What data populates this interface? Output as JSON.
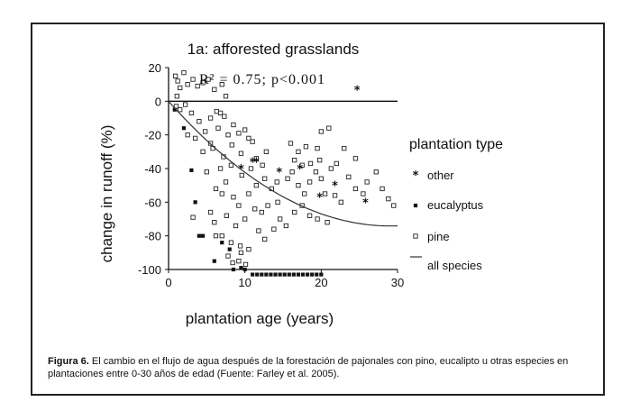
{
  "chart_data": {
    "type": "scatter",
    "title": "1a: afforested grasslands",
    "annotation": "R² = 0.75; p<0.001",
    "xlabel": "plantation age (years)",
    "ylabel": "change in runoff (%)",
    "xlim": [
      0,
      30
    ],
    "ylim": [
      -100,
      20
    ],
    "xticks": [
      0,
      10,
      20,
      30
    ],
    "yticks": [
      20,
      0,
      -20,
      -40,
      -60,
      -80,
      -100
    ],
    "legend": {
      "title": "plantation type",
      "placement": "right",
      "entries": [
        {
          "label": "other",
          "marker": "asterisk"
        },
        {
          "label": "eucalyptus",
          "marker": "filled-square"
        },
        {
          "label": "pine",
          "marker": "open-square"
        },
        {
          "label": "all species",
          "marker": "line"
        }
      ]
    },
    "series": [
      {
        "name": "pine",
        "marker": "open-square",
        "points": [
          [
            0.9,
            15
          ],
          [
            1.2,
            12
          ],
          [
            1.5,
            8
          ],
          [
            1.1,
            3
          ],
          [
            2.0,
            17
          ],
          [
            2.5,
            10
          ],
          [
            3.2,
            13
          ],
          [
            3.8,
            9
          ],
          [
            4.5,
            11
          ],
          [
            5.2,
            13
          ],
          [
            6.0,
            7
          ],
          [
            7.0,
            10
          ],
          [
            7.5,
            3
          ],
          [
            1.0,
            -3
          ],
          [
            1.5,
            -5
          ],
          [
            2.2,
            -2
          ],
          [
            3.0,
            -7
          ],
          [
            4.0,
            -12
          ],
          [
            5.5,
            -10
          ],
          [
            6.3,
            -6
          ],
          [
            6.8,
            -7
          ],
          [
            7.3,
            -9
          ],
          [
            2.5,
            -20
          ],
          [
            3.5,
            -22
          ],
          [
            4.8,
            -18
          ],
          [
            5.5,
            -25
          ],
          [
            6.5,
            -16
          ],
          [
            7.8,
            -20
          ],
          [
            8.5,
            -14
          ],
          [
            9.2,
            -19
          ],
          [
            4.5,
            -30
          ],
          [
            5.8,
            -28
          ],
          [
            7.2,
            -33
          ],
          [
            8.3,
            -26
          ],
          [
            9.5,
            -31
          ],
          [
            10.0,
            -17
          ],
          [
            10.5,
            -22
          ],
          [
            11.0,
            -24
          ],
          [
            5.0,
            -42
          ],
          [
            6.8,
            -40
          ],
          [
            7.5,
            -48
          ],
          [
            8.2,
            -38
          ],
          [
            9.6,
            -44
          ],
          [
            10.8,
            -40
          ],
          [
            11.5,
            -34
          ],
          [
            12.3,
            -38
          ],
          [
            12.8,
            -30
          ],
          [
            6.2,
            -52
          ],
          [
            7.0,
            -55
          ],
          [
            8.5,
            -57
          ],
          [
            9.2,
            -62
          ],
          [
            10.5,
            -55
          ],
          [
            11.5,
            -50
          ],
          [
            12.6,
            -46
          ],
          [
            13.5,
            -52
          ],
          [
            14.2,
            -48
          ],
          [
            3.2,
            -69
          ],
          [
            5.5,
            -66
          ],
          [
            6.0,
            -72
          ],
          [
            7.6,
            -68
          ],
          [
            8.8,
            -74
          ],
          [
            10.0,
            -70
          ],
          [
            11.3,
            -64
          ],
          [
            12.2,
            -66
          ],
          [
            13.0,
            -62
          ],
          [
            14.3,
            -60
          ],
          [
            6.2,
            -80
          ],
          [
            7.0,
            -80
          ],
          [
            8.2,
            -84
          ],
          [
            9.4,
            -86
          ],
          [
            10.5,
            -88
          ],
          [
            11.8,
            -77
          ],
          [
            12.6,
            -82
          ],
          [
            13.8,
            -76
          ],
          [
            14.6,
            -70
          ],
          [
            15.4,
            -74
          ],
          [
            7.8,
            -92
          ],
          [
            8.4,
            -96
          ],
          [
            9.2,
            -95
          ],
          [
            10.1,
            -97
          ],
          [
            9.5,
            -90
          ],
          [
            16.5,
            -66
          ],
          [
            17.5,
            -62
          ],
          [
            18.5,
            -68
          ],
          [
            19.5,
            -70
          ],
          [
            20.8,
            -72
          ],
          [
            15.6,
            -46
          ],
          [
            16.2,
            -42
          ],
          [
            17.0,
            -50
          ],
          [
            17.8,
            -55
          ],
          [
            18.5,
            -48
          ],
          [
            19.3,
            -42
          ],
          [
            20.0,
            -46
          ],
          [
            20.5,
            -55
          ],
          [
            21.3,
            -40
          ],
          [
            22.0,
            -37
          ],
          [
            16.0,
            -25
          ],
          [
            17.0,
            -30
          ],
          [
            18.0,
            -27
          ],
          [
            19.5,
            -28
          ],
          [
            20.0,
            -18
          ],
          [
            21.0,
            -16
          ],
          [
            23.0,
            -28
          ],
          [
            23.6,
            -45
          ],
          [
            24.5,
            -52
          ],
          [
            16.5,
            -35
          ],
          [
            17.5,
            -38
          ],
          [
            18.6,
            -37
          ],
          [
            19.8,
            -35
          ],
          [
            21.8,
            -56
          ],
          [
            22.6,
            -60
          ],
          [
            24.5,
            -34
          ],
          [
            25.5,
            -55
          ],
          [
            26.0,
            -48
          ],
          [
            27.2,
            -42
          ],
          [
            28.0,
            -52
          ],
          [
            28.8,
            -58
          ],
          [
            29.5,
            -62
          ]
        ]
      },
      {
        "name": "eucalyptus",
        "marker": "filled-square",
        "points": [
          [
            0.8,
            -5
          ],
          [
            2.0,
            -16
          ],
          [
            3.0,
            -41
          ],
          [
            3.5,
            -60
          ],
          [
            4.0,
            -80
          ],
          [
            4.5,
            -80
          ],
          [
            6.0,
            -95
          ],
          [
            7.0,
            -84
          ],
          [
            8.0,
            -88
          ],
          [
            8.5,
            -100
          ],
          [
            9.5,
            -99
          ],
          [
            10.0,
            -100
          ],
          [
            11.0,
            -103
          ],
          [
            11.6,
            -103
          ],
          [
            12.2,
            -103
          ],
          [
            12.8,
            -103
          ],
          [
            13.4,
            -103
          ],
          [
            14.0,
            -103
          ],
          [
            14.6,
            -103
          ],
          [
            15.2,
            -103
          ],
          [
            15.8,
            -103
          ],
          [
            16.4,
            -103
          ],
          [
            17.0,
            -103
          ],
          [
            17.6,
            -103
          ],
          [
            18.2,
            -103
          ],
          [
            18.8,
            -103
          ],
          [
            19.4,
            -103
          ],
          [
            20.0,
            -103
          ]
        ]
      },
      {
        "name": "other",
        "marker": "asterisk",
        "points": [
          [
            9.5,
            -40
          ],
          [
            11.0,
            -36
          ],
          [
            14.5,
            -42
          ],
          [
            17.2,
            -40
          ],
          [
            19.8,
            -57
          ],
          [
            21.8,
            -50
          ],
          [
            24.7,
            7
          ],
          [
            25.8,
            -60
          ],
          [
            11.5,
            -36
          ]
        ]
      }
    ],
    "fit": {
      "name": "all species",
      "form": "y = 0.0877x^2 - 5.1x",
      "coefficients": {
        "a": 0.0877,
        "b": -5.1,
        "c": 0
      },
      "x_range": [
        0,
        30
      ]
    }
  },
  "caption": {
    "label": "Figura 6.",
    "text": " El cambio en el flujo de agua después de la forestación de pajonales con pino, eucalipto u otras especies en plantaciones entre 0-30 años de edad (Fuente: Farley et al. 2005)."
  }
}
